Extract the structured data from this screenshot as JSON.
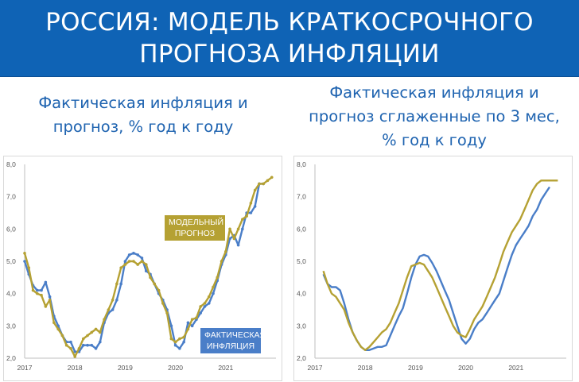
{
  "header": {
    "title_line1": "РОССИЯ: МОДЕЛЬ КРАТКОСРОЧНОГО",
    "title_line2": "ПРОГНОЗА ИНФЛЯЦИИ"
  },
  "subtitles": {
    "left_line1": "Фактическая инфляция и",
    "left_line2": "прогноз, % год к году",
    "right_line1": "Фактическая инфляция и",
    "right_line2": "прогноз сглаженные по 3 мес,",
    "right_line3": "% год к году"
  },
  "legend": {
    "model_line1": "МОДЕЛЬНЫЙ",
    "model_line2": "ПРОГНОЗ",
    "fact_line1": "ФАКТИЧЕСКАЯ",
    "fact_line2": "ИНФЛЯЦИЯ"
  },
  "colors": {
    "title_bg": "#0f63b5",
    "actual": "#4a7ec8",
    "forecast": "#b5a133",
    "subtitle": "#1e63b0"
  },
  "chart_data": [
    {
      "type": "line",
      "title": "Фактическая инфляция и прогноз, % год к году",
      "x_ticks": [
        "2017",
        "2018",
        "2019",
        "2020",
        "2021"
      ],
      "ylim": [
        2.0,
        8.0
      ],
      "y_ticks": [
        "2,0",
        "3,0",
        "4,0",
        "5,0",
        "6,0",
        "7,0",
        "8,0"
      ],
      "grid": false,
      "markers": true,
      "series": [
        {
          "name": "ФАКТИЧЕСКАЯ ИНФЛЯЦИЯ",
          "color": "#4a7ec8",
          "x": [
            2017.0,
            2017.083,
            2017.167,
            2017.25,
            2017.333,
            2017.417,
            2017.5,
            2017.583,
            2017.667,
            2017.75,
            2017.833,
            2017.917,
            2018.0,
            2018.083,
            2018.167,
            2018.25,
            2018.333,
            2018.417,
            2018.5,
            2018.583,
            2018.667,
            2018.75,
            2018.833,
            2018.917,
            2019.0,
            2019.083,
            2019.167,
            2019.25,
            2019.333,
            2019.417,
            2019.5,
            2019.583,
            2019.667,
            2019.75,
            2019.833,
            2019.917,
            2020.0,
            2020.083,
            2020.167,
            2020.25,
            2020.333,
            2020.417,
            2020.5,
            2020.583,
            2020.667,
            2020.75,
            2020.833,
            2020.917,
            2021.0,
            2021.083,
            2021.167,
            2021.25,
            2021.333,
            2021.417,
            2021.5,
            2021.583,
            2021.667,
            2021.75
          ],
          "y": [
            5.0,
            4.6,
            4.25,
            4.1,
            4.1,
            4.35,
            3.9,
            3.3,
            3.0,
            2.7,
            2.5,
            2.5,
            2.2,
            2.2,
            2.4,
            2.4,
            2.4,
            2.3,
            2.5,
            3.1,
            3.4,
            3.5,
            3.8,
            4.3,
            5.0,
            5.2,
            5.25,
            5.2,
            5.1,
            4.7,
            4.6,
            4.3,
            4.0,
            3.8,
            3.5,
            3.0,
            2.4,
            2.3,
            2.5,
            3.1,
            3.0,
            3.2,
            3.4,
            3.6,
            3.7,
            4.0,
            4.4,
            4.9,
            5.2,
            5.7,
            5.8,
            5.5,
            6.0,
            6.5,
            6.5,
            6.7,
            7.4,
            7.4
          ]
        },
        {
          "name": "МОДЕЛЬНЫЙ ПРОГНОЗ",
          "color": "#b5a133",
          "x": [
            2017.0,
            2017.083,
            2017.167,
            2017.25,
            2017.333,
            2017.417,
            2017.5,
            2017.583,
            2017.667,
            2017.75,
            2017.833,
            2017.917,
            2018.0,
            2018.083,
            2018.167,
            2018.25,
            2018.333,
            2018.417,
            2018.5,
            2018.583,
            2018.667,
            2018.75,
            2018.833,
            2018.917,
            2019.0,
            2019.083,
            2019.167,
            2019.25,
            2019.333,
            2019.417,
            2019.5,
            2019.583,
            2019.667,
            2019.75,
            2019.833,
            2019.917,
            2020.0,
            2020.083,
            2020.167,
            2020.25,
            2020.333,
            2020.417,
            2020.5,
            2020.583,
            2020.667,
            2020.75,
            2020.833,
            2020.917,
            2021.0,
            2021.083,
            2021.167,
            2021.25,
            2021.333,
            2021.417,
            2021.5,
            2021.583,
            2021.667,
            2021.75,
            2021.833,
            2021.917
          ],
          "y": [
            5.25,
            4.8,
            4.1,
            4.0,
            3.95,
            3.6,
            3.8,
            3.1,
            2.9,
            2.7,
            2.4,
            2.3,
            2.05,
            2.3,
            2.6,
            2.7,
            2.8,
            2.9,
            2.8,
            3.2,
            3.5,
            3.8,
            4.3,
            4.8,
            4.9,
            5.0,
            5.0,
            4.9,
            5.0,
            4.9,
            4.5,
            4.3,
            4.1,
            3.7,
            3.4,
            2.6,
            2.5,
            2.6,
            2.65,
            2.9,
            3.2,
            3.25,
            3.6,
            3.7,
            3.9,
            4.2,
            4.5,
            5.0,
            5.3,
            6.0,
            5.7,
            6.0,
            6.3,
            6.4,
            6.8,
            7.2,
            7.4,
            7.4,
            7.5,
            7.6
          ]
        }
      ]
    },
    {
      "type": "line",
      "title": "Фактическая инфляция и прогноз сглаженные по 3 мес, % год к году",
      "x_ticks": [
        "2017",
        "2018",
        "2019",
        "2020",
        "2021"
      ],
      "ylim": [
        2.0,
        8.0
      ],
      "y_ticks": [
        "2,0",
        "3,0",
        "4,0",
        "5,0",
        "6,0",
        "7,0",
        "8,0"
      ],
      "grid": false,
      "markers": false,
      "series": [
        {
          "color": "#4a7ec8",
          "x": [
            2017.167,
            2017.25,
            2017.333,
            2017.417,
            2017.5,
            2017.583,
            2017.667,
            2017.75,
            2017.833,
            2017.917,
            2018.0,
            2018.083,
            2018.167,
            2018.25,
            2018.333,
            2018.417,
            2018.5,
            2018.583,
            2018.667,
            2018.75,
            2018.833,
            2018.917,
            2019.0,
            2019.083,
            2019.167,
            2019.25,
            2019.333,
            2019.417,
            2019.5,
            2019.583,
            2019.667,
            2019.75,
            2019.833,
            2019.917,
            2020.0,
            2020.083,
            2020.167,
            2020.25,
            2020.333,
            2020.417,
            2020.5,
            2020.583,
            2020.667,
            2020.75,
            2020.833,
            2020.917,
            2021.0,
            2021.083,
            2021.167,
            2021.25,
            2021.333,
            2021.417,
            2021.5,
            2021.583,
            2021.667
          ],
          "y": [
            4.6,
            4.3,
            4.2,
            4.2,
            4.1,
            3.7,
            3.2,
            2.8,
            2.55,
            2.35,
            2.25,
            2.25,
            2.3,
            2.35,
            2.35,
            2.4,
            2.7,
            3.0,
            3.3,
            3.55,
            4.0,
            4.5,
            4.9,
            5.15,
            5.2,
            5.15,
            4.95,
            4.7,
            4.4,
            4.1,
            3.8,
            3.4,
            3.0,
            2.6,
            2.45,
            2.6,
            2.9,
            3.1,
            3.2,
            3.4,
            3.6,
            3.8,
            4.0,
            4.4,
            4.8,
            5.2,
            5.5,
            5.7,
            5.9,
            6.1,
            6.4,
            6.6,
            6.9,
            7.1,
            7.3
          ]
        },
        {
          "color": "#b5a133",
          "x": [
            2017.167,
            2017.25,
            2017.333,
            2017.417,
            2017.5,
            2017.583,
            2017.667,
            2017.75,
            2017.833,
            2017.917,
            2018.0,
            2018.083,
            2018.167,
            2018.25,
            2018.333,
            2018.417,
            2018.5,
            2018.583,
            2018.667,
            2018.75,
            2018.833,
            2018.917,
            2019.0,
            2019.083,
            2019.167,
            2019.25,
            2019.333,
            2019.417,
            2019.5,
            2019.583,
            2019.667,
            2019.75,
            2019.833,
            2019.917,
            2020.0,
            2020.083,
            2020.167,
            2020.25,
            2020.333,
            2020.417,
            2020.5,
            2020.583,
            2020.667,
            2020.75,
            2020.833,
            2020.917,
            2021.0,
            2021.083,
            2021.167,
            2021.25,
            2021.333,
            2021.417,
            2021.5,
            2021.583,
            2021.667,
            2021.75,
            2021.833
          ],
          "y": [
            4.7,
            4.3,
            4.0,
            3.9,
            3.7,
            3.5,
            3.1,
            2.8,
            2.55,
            2.35,
            2.25,
            2.35,
            2.5,
            2.65,
            2.8,
            2.9,
            3.1,
            3.4,
            3.7,
            4.1,
            4.5,
            4.85,
            4.9,
            4.95,
            4.9,
            4.7,
            4.5,
            4.2,
            3.9,
            3.6,
            3.3,
            3.0,
            2.8,
            2.7,
            2.65,
            2.9,
            3.2,
            3.4,
            3.6,
            3.9,
            4.2,
            4.5,
            4.9,
            5.3,
            5.6,
            5.9,
            6.1,
            6.3,
            6.6,
            6.9,
            7.2,
            7.4,
            7.5,
            7.5,
            7.5,
            7.5,
            7.5
          ]
        }
      ]
    }
  ]
}
